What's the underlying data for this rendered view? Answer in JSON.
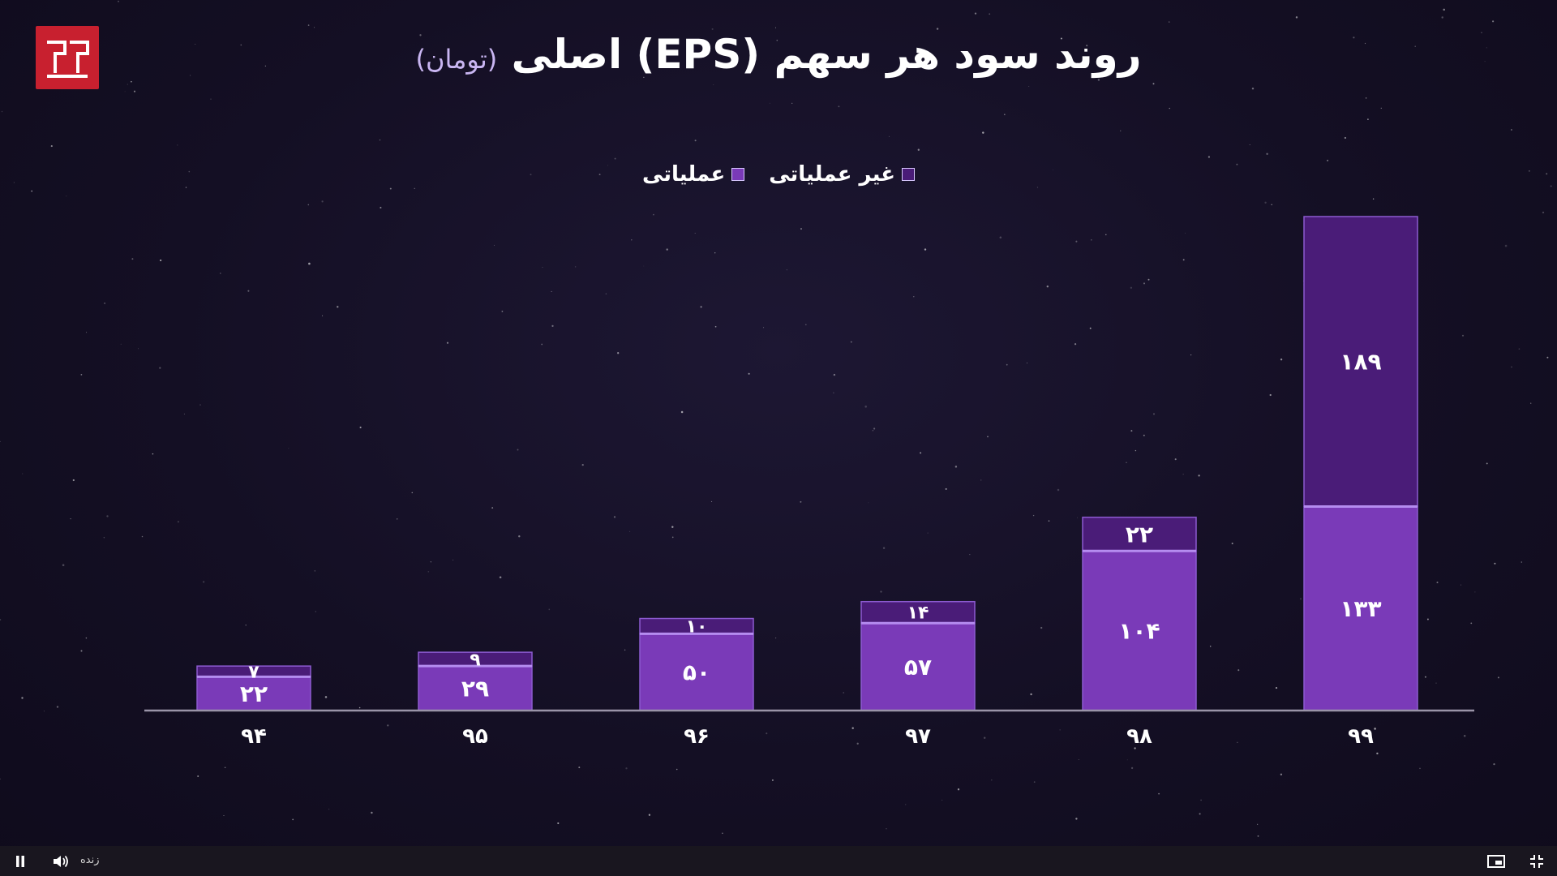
{
  "title": {
    "main": "روند سود هر سهم (EPS) اصلی",
    "unit": "(تومان)"
  },
  "legend": [
    {
      "label": "غیر عملیاتی",
      "color": "#4a1c78"
    },
    {
      "label": "عملیاتی",
      "color": "#7a3ab8"
    }
  ],
  "chart_data": {
    "type": "bar",
    "stacked": true,
    "categories": [
      "۹۴",
      "۹۵",
      "۹۶",
      "۹۷",
      "۹۸",
      "۹۹"
    ],
    "series": [
      {
        "name": "عملیاتی",
        "values": [
          22,
          29,
          50,
          57,
          104,
          133
        ],
        "labels": [
          "۲۲",
          "۲۹",
          "۵۰",
          "۵۷",
          "۱۰۴",
          "۱۳۳"
        ],
        "color": "#7a3ab8"
      },
      {
        "name": "غیر عملیاتی",
        "values": [
          7,
          9,
          10,
          14,
          22,
          189
        ],
        "labels": [
          "۷",
          "۹",
          "۱۰",
          "۱۴",
          "۲۲",
          "۱۸۹"
        ],
        "color": "#4a1c78"
      }
    ],
    "title": "روند سود هر سهم (EPS) اصلی (تومان)",
    "xlabel": "",
    "ylabel": "",
    "grid": false,
    "legend_position": "top-center"
  },
  "player": {
    "time_label": "زنده",
    "pause_icon": "pause-icon",
    "volume_icon": "volume-icon",
    "pip_icon": "picture-in-picture-icon",
    "exit_fullscreen_icon": "exit-fullscreen-icon"
  }
}
